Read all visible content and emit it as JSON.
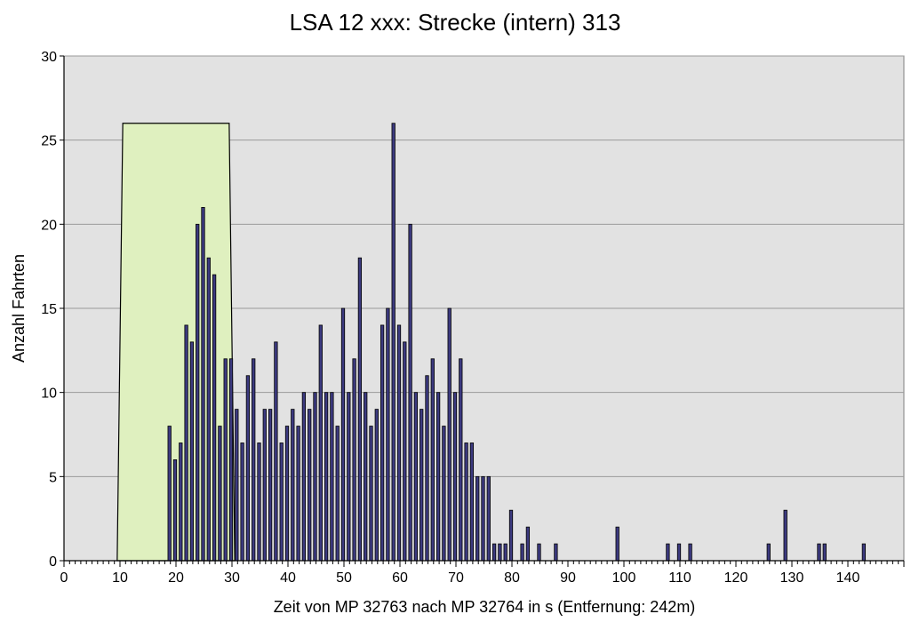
{
  "chart_data": {
    "type": "bar",
    "title": "LSA 12 xxx: Strecke (intern) 313",
    "xlabel": "Zeit von MP 32763 nach MP 32764 in s (Entfernung: 242m)",
    "ylabel": "Anzahl Fahrten",
    "xlim": [
      0,
      150
    ],
    "ylim": [
      0,
      30
    ],
    "x_ticks": [
      0,
      10,
      20,
      30,
      40,
      50,
      60,
      70,
      80,
      90,
      100,
      110,
      120,
      130,
      140
    ],
    "x_tick_labels": [
      "0",
      "10",
      "20",
      "30",
      "40",
      "50",
      "60",
      "70",
      "80",
      "90",
      "100",
      "110",
      "120",
      "130",
      "140"
    ],
    "y_ticks": [
      0,
      5,
      10,
      15,
      20,
      25,
      30
    ],
    "y_tick_labels": [
      "0",
      "5",
      "10",
      "15",
      "20",
      "25",
      "30"
    ],
    "grid": true,
    "band": {
      "polygon": [
        [
          9.5,
          0
        ],
        [
          10.5,
          26
        ],
        [
          29.5,
          26
        ],
        [
          30.5,
          0
        ]
      ],
      "color": "#dff0bf"
    },
    "bar_color": "#3c3a80",
    "plot_background": "#e2e2e2",
    "x": [
      19,
      20,
      21,
      22,
      23,
      24,
      25,
      26,
      27,
      28,
      29,
      30,
      31,
      32,
      33,
      34,
      35,
      36,
      37,
      38,
      39,
      40,
      41,
      42,
      43,
      44,
      45,
      46,
      47,
      48,
      49,
      50,
      51,
      52,
      53,
      54,
      55,
      56,
      57,
      58,
      59,
      60,
      61,
      62,
      63,
      64,
      65,
      66,
      67,
      68,
      69,
      70,
      71,
      72,
      73,
      74,
      75,
      76,
      77,
      78,
      79,
      80,
      82,
      83,
      85,
      88,
      99,
      108,
      110,
      112,
      126,
      129,
      135,
      136,
      143
    ],
    "values": [
      8,
      6,
      7,
      14,
      13,
      20,
      21,
      18,
      17,
      8,
      12,
      12,
      9,
      7,
      11,
      12,
      7,
      9,
      9,
      13,
      7,
      8,
      9,
      8,
      10,
      9,
      10,
      14,
      10,
      10,
      8,
      15,
      10,
      12,
      18,
      10,
      8,
      9,
      14,
      15,
      26,
      14,
      13,
      20,
      10,
      9,
      11,
      12,
      10,
      8,
      15,
      10,
      12,
      7,
      7,
      5,
      5,
      5,
      1,
      1,
      1,
      3,
      1,
      2,
      1,
      1,
      2,
      1,
      1,
      1,
      1,
      3,
      1,
      1,
      1
    ]
  }
}
